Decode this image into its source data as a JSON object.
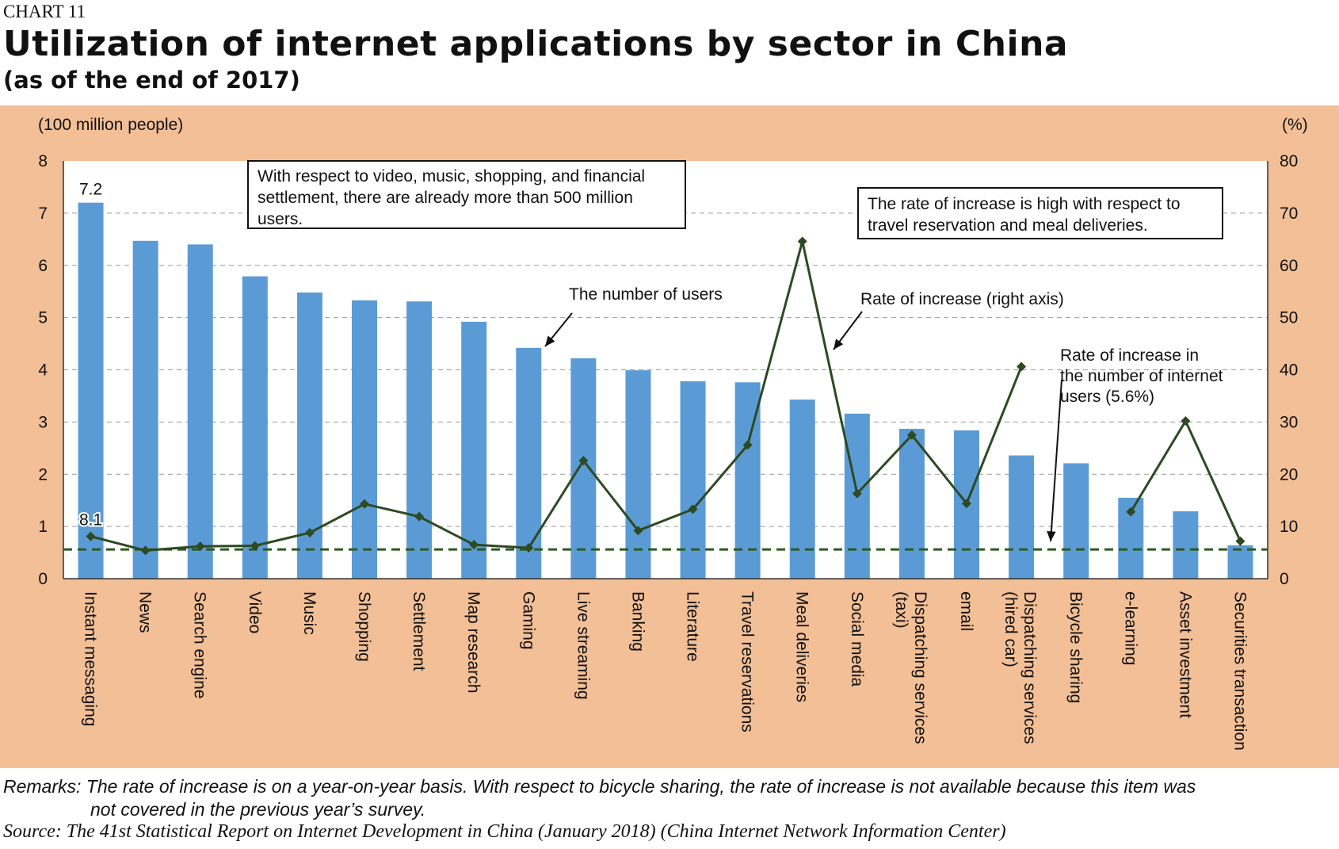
{
  "header": {
    "chart_label": "CHART 11",
    "title": "Utilization of internet applications by sector in China",
    "subtitle": "(as of the end of 2017)"
  },
  "footer": {
    "remarks_line1": "Remarks: The rate of increase is on a year-on-year basis. With respect to bicycle sharing, the rate of increase is not available because this item was",
    "remarks_line2": "not covered in the previous year’s survey.",
    "source": "Source: The 41st Statistical Report on Internet Development in China (January 2018) (China Internet Network Information Center)"
  },
  "colors": {
    "panel": "#f2bf96",
    "bar": "#5b9bd5",
    "line": "#2e4a22",
    "reference_line": "#2e5a1e"
  },
  "chart_data": {
    "type": "bar",
    "categories": [
      "Instant messaging",
      "News",
      "Search engine",
      "Video",
      "Music",
      "Shopping",
      "Settlement",
      "Map research",
      "Gaming",
      "Live streaming",
      "Banking",
      "Literature",
      "Travel reservations",
      "Meal deliveries",
      "Social media",
      "Dispatching services (taxi)",
      "email",
      "Dispatching services (hired car)",
      "Bicycle sharing",
      "e-learning",
      "Asset investment",
      "Securities transaction"
    ],
    "category_lines": [
      [
        "Instant messaging"
      ],
      [
        "News"
      ],
      [
        "Search engine"
      ],
      [
        "Video"
      ],
      [
        "Music"
      ],
      [
        "Shopping"
      ],
      [
        "Settlement"
      ],
      [
        "Map research"
      ],
      [
        "Gaming"
      ],
      [
        "Live streaming"
      ],
      [
        "Banking"
      ],
      [
        "Literature"
      ],
      [
        "Travel reservations"
      ],
      [
        "Meal deliveries"
      ],
      [
        "Social media"
      ],
      [
        "Dispatching services",
        "(taxi)"
      ],
      [
        "email"
      ],
      [
        "Dispatching services",
        "(hired car)"
      ],
      [
        "Bicycle sharing"
      ],
      [
        "e-learning"
      ],
      [
        "Asset investment"
      ],
      [
        "Securities transaction"
      ]
    ],
    "series": [
      {
        "name": "The number of users",
        "type": "bar",
        "axis": "left",
        "values": [
          7.2,
          6.47,
          6.4,
          5.79,
          5.48,
          5.33,
          5.31,
          4.92,
          4.42,
          4.22,
          3.99,
          3.78,
          3.76,
          3.43,
          3.16,
          2.87,
          2.84,
          2.36,
          2.21,
          1.55,
          1.29,
          0.64
        ]
      },
      {
        "name": "Rate of increase (right axis)",
        "type": "line",
        "axis": "right",
        "values": [
          8.1,
          5.4,
          6.2,
          6.3,
          8.8,
          14.3,
          11.9,
          6.5,
          5.9,
          22.6,
          9.2,
          13.3,
          25.6,
          64.6,
          16.3,
          27.5,
          14.4,
          40.6,
          null,
          12.8,
          30.2,
          7.2
        ]
      }
    ],
    "reference_line": {
      "axis": "right",
      "value": 5.6
    },
    "y_left": {
      "label": "(100 million people)",
      "ylim": [
        0,
        8
      ],
      "ticks": [
        "0",
        "1",
        "2",
        "3",
        "4",
        "5",
        "6",
        "7",
        "8"
      ]
    },
    "y_right": {
      "label": "(%)",
      "ylim": [
        0,
        80
      ],
      "ticks": [
        "0",
        "10",
        "20",
        "30",
        "40",
        "50",
        "60",
        "70",
        "80"
      ]
    },
    "grid": "horizontal-dashed",
    "data_labels": {
      "first_bar": "7.2",
      "first_point": "8.1"
    },
    "annotations": {
      "box1": [
        "With respect to video, music, shopping, and financial",
        "settlement, there are already more than 500 million",
        "users."
      ],
      "box2": [
        "The rate of increase is high with respect to",
        "travel reservation and meal deliveries."
      ],
      "users_label": "The number of users",
      "rate_label": "Rate of increase (right axis)",
      "internet_rate_label": [
        "Rate of increase in",
        "the number of internet",
        "users (5.6%)"
      ]
    }
  }
}
